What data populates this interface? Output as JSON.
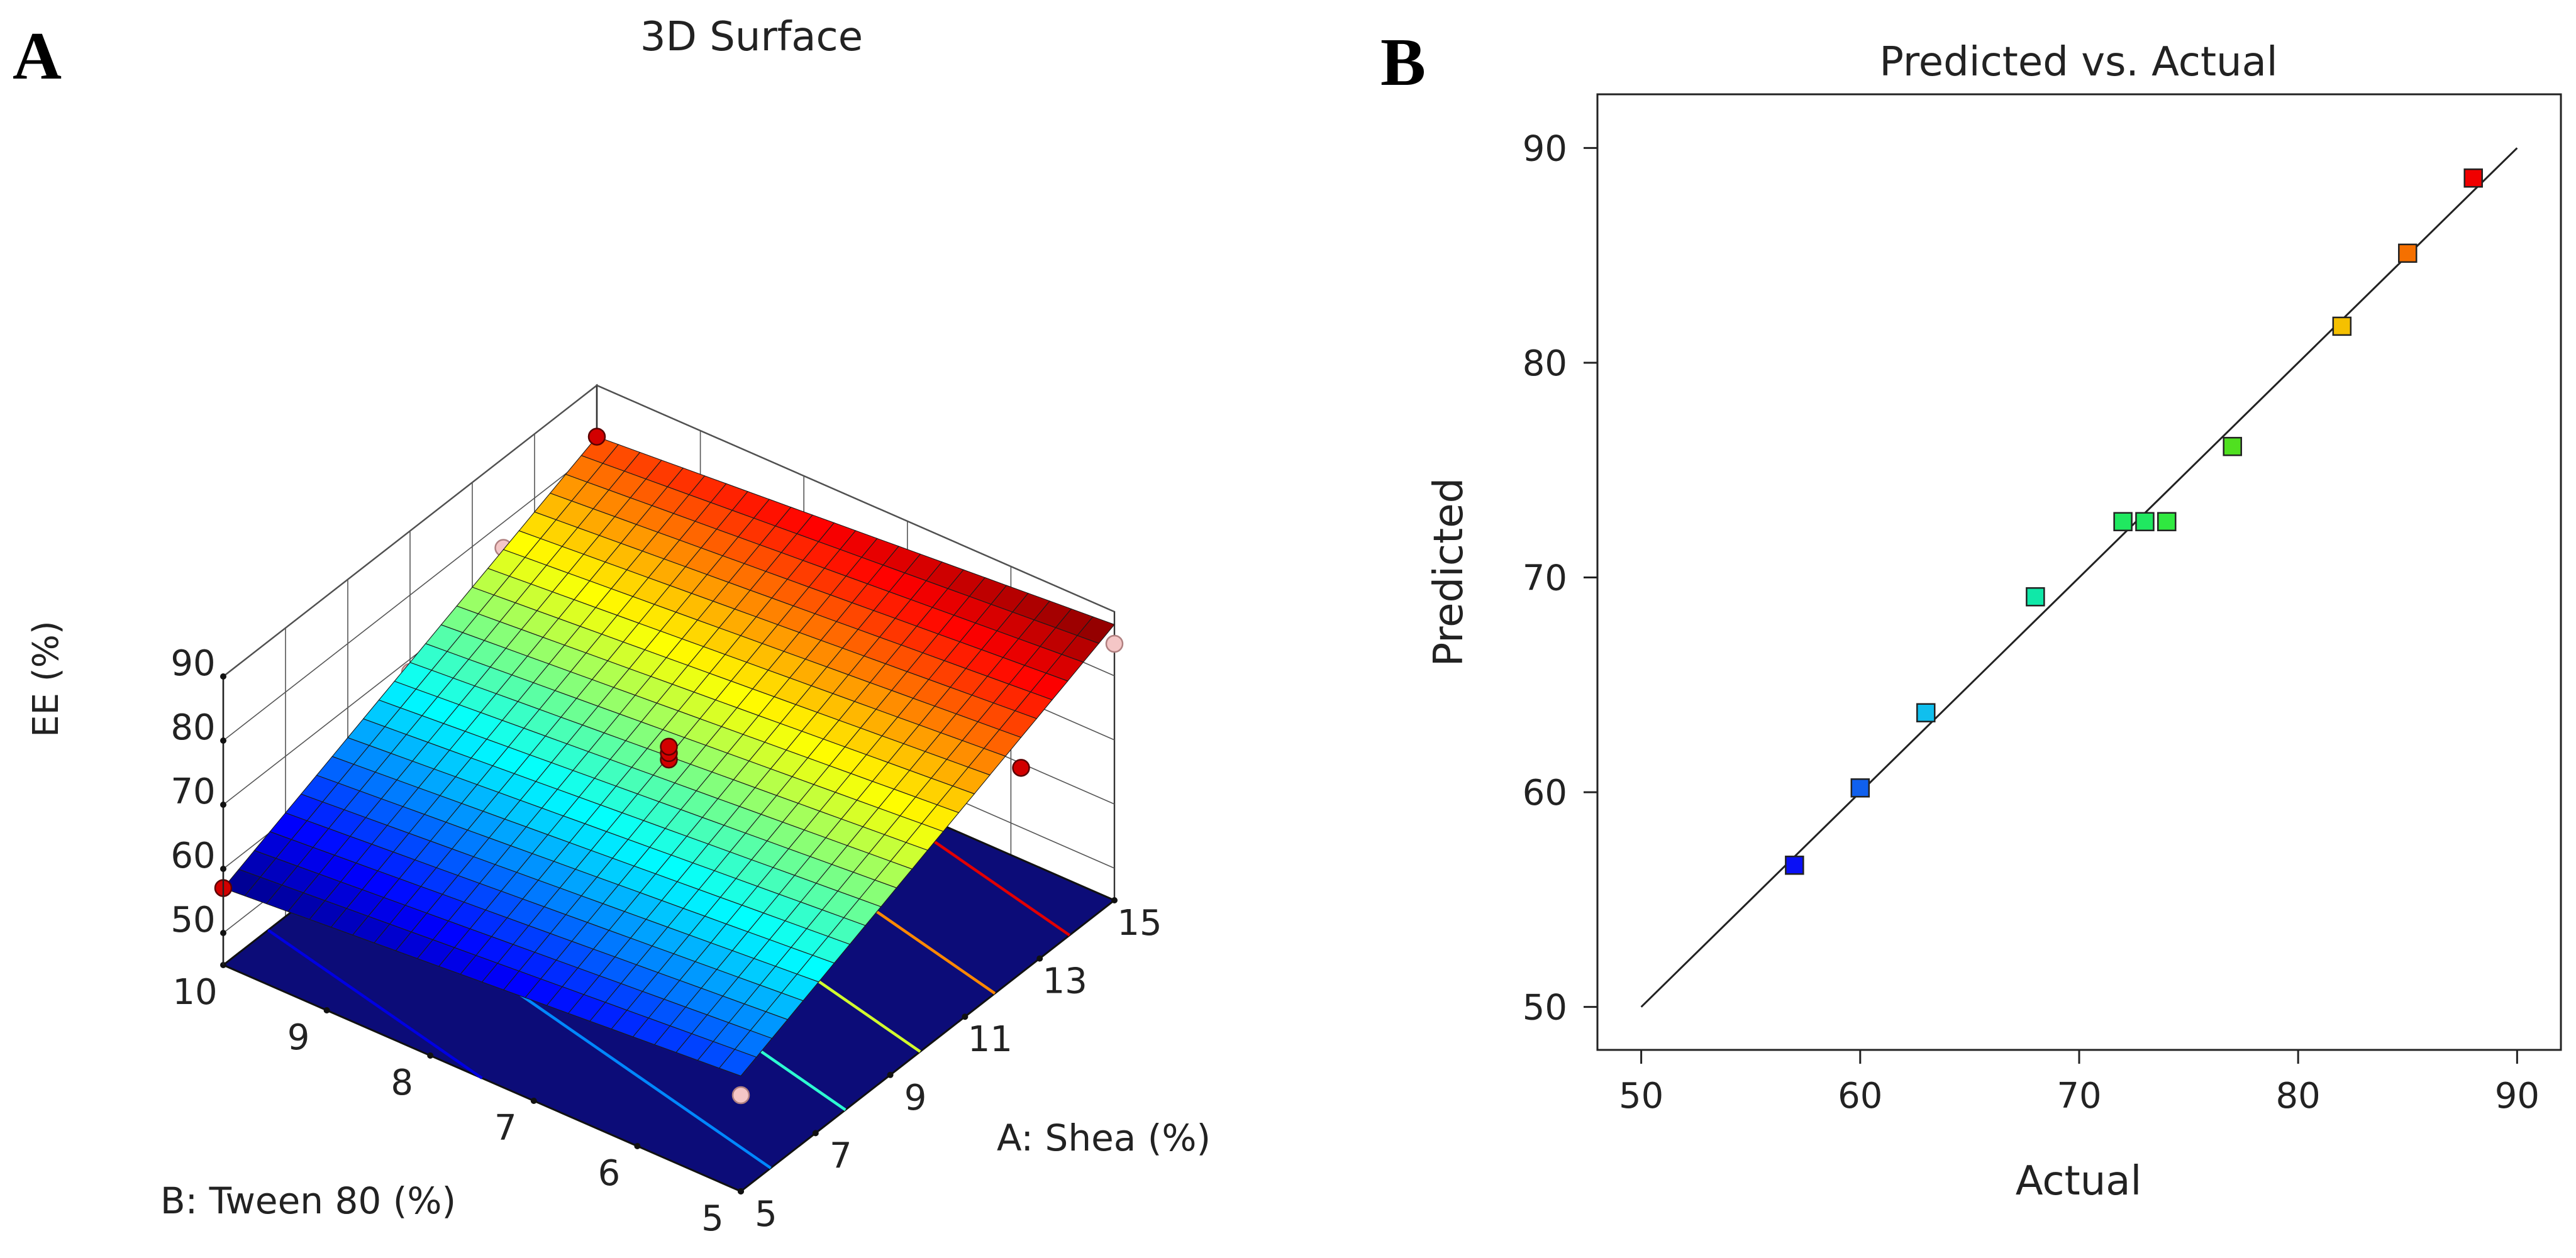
{
  "panels": {
    "a_letter": "A",
    "b_letter": "B"
  },
  "chart_data": [
    {
      "type": "surface",
      "title": "3D Surface",
      "xlabel": "A: Shea (%)",
      "ylabel": "B: Tween 80 (%)",
      "zlabel": "EE (%)",
      "x_ticks": [
        5,
        7,
        9,
        11,
        13,
        15
      ],
      "y_ticks": [
        5,
        6,
        7,
        8,
        9,
        10
      ],
      "z_ticks": [
        50,
        60,
        70,
        80,
        90
      ],
      "xlim": [
        5,
        15
      ],
      "ylim": [
        5,
        10
      ],
      "zlim": [
        45,
        90
      ],
      "surface_corners": {
        "shea5_tween5": 63,
        "shea15_tween5": 88,
        "shea5_tween10": 57,
        "shea15_tween10": 82
      },
      "contour_levels": [
        60,
        65,
        70,
        75,
        80,
        85
      ],
      "design_points": [
        {
          "shea": 5,
          "tween": 10,
          "ee": 57,
          "above_surface": true
        },
        {
          "shea": 15,
          "tween": 10,
          "ee": 82,
          "above_surface": true
        },
        {
          "shea": 10,
          "tween": 7.5,
          "ee": 72,
          "above_surface": true
        },
        {
          "shea": 10,
          "tween": 7.5,
          "ee": 73,
          "above_surface": true
        },
        {
          "shea": 10,
          "tween": 7.5,
          "ee": 74,
          "above_surface": true
        },
        {
          "shea": 12.5,
          "tween": 5,
          "ee": 77,
          "above_surface": true
        },
        {
          "shea": 15,
          "tween": 5,
          "ee": 85,
          "above_surface": false
        },
        {
          "shea": 5,
          "tween": 5,
          "ee": 60,
          "above_surface": false
        },
        {
          "shea": 10,
          "tween": 10,
          "ee": 68,
          "above_surface": false
        },
        {
          "shea": 12.5,
          "tween": 10,
          "ee": 76,
          "above_surface": false
        }
      ],
      "colors": {
        "floor": "#0c0c78",
        "above_point": "#d20000",
        "below_point": "#f4c6c6"
      }
    },
    {
      "type": "scatter",
      "title": "Predicted vs. Actual",
      "xlabel": "Actual",
      "ylabel": "Predicted",
      "xlim": [
        48,
        92
      ],
      "ylim": [
        48,
        92.5
      ],
      "x_ticks": [
        50,
        60,
        70,
        80,
        90
      ],
      "y_ticks": [
        50,
        60,
        70,
        80,
        90
      ],
      "reference_line": {
        "from": [
          50,
          50
        ],
        "to": [
          90,
          90
        ]
      },
      "points": [
        {
          "actual": 57,
          "predicted": 56.6,
          "color": "#0a10f5"
        },
        {
          "actual": 60,
          "predicted": 60.2,
          "color": "#1060ee"
        },
        {
          "actual": 63,
          "predicted": 63.7,
          "color": "#10bfee"
        },
        {
          "actual": 68,
          "predicted": 69.1,
          "color": "#10e8a8"
        },
        {
          "actual": 72,
          "predicted": 72.6,
          "color": "#20e860"
        },
        {
          "actual": 73,
          "predicted": 72.6,
          "color": "#20e860"
        },
        {
          "actual": 74,
          "predicted": 72.6,
          "color": "#30e840"
        },
        {
          "actual": 77,
          "predicted": 76.1,
          "color": "#50e020"
        },
        {
          "actual": 82,
          "predicted": 81.7,
          "color": "#f5c000"
        },
        {
          "actual": 85,
          "predicted": 85.1,
          "color": "#f57000"
        },
        {
          "actual": 88,
          "predicted": 88.6,
          "color": "#f00000"
        }
      ],
      "grid": false,
      "legend": "none"
    }
  ]
}
